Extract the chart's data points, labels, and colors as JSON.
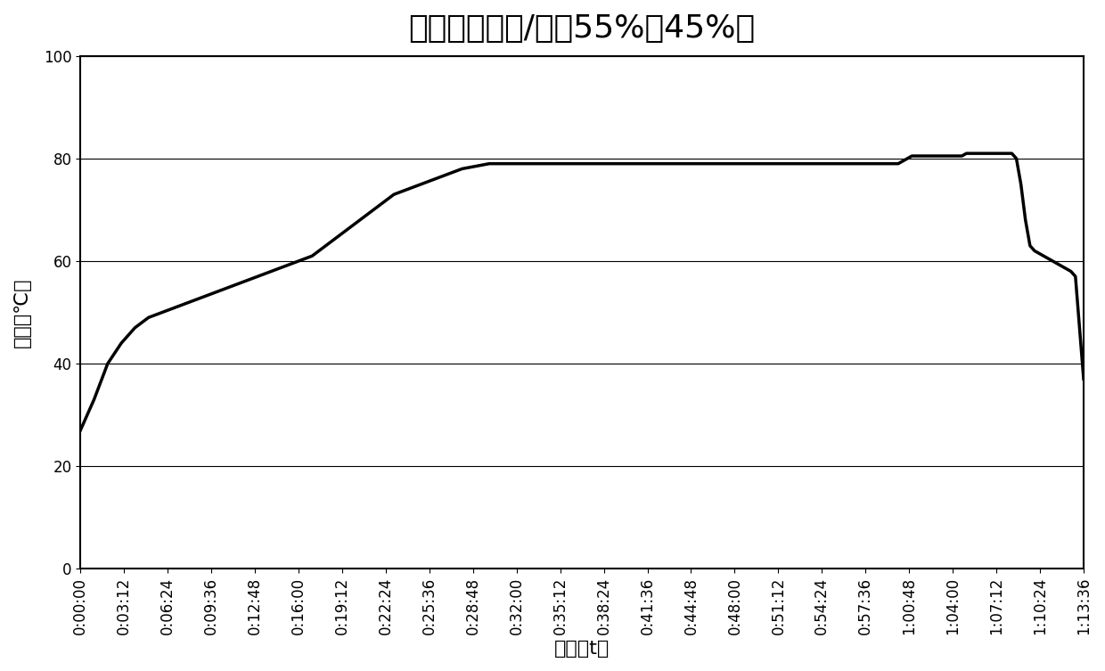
{
  "title": "无水焦磷酸钓/水（55%：45%）",
  "xlabel": "时间（t）",
  "ylabel": "温度（℃）",
  "ylabel_chars": [
    "温",
    "度",
    "（",
    "℃",
    "）"
  ],
  "ylim": [
    0,
    100
  ],
  "yticks": [
    0,
    20,
    40,
    60,
    80,
    100
  ],
  "xtick_labels": [
    "0:00:00",
    "0:03:12",
    "0:06:24",
    "0:09:36",
    "0:12:48",
    "0:16:00",
    "0:19:12",
    "0:22:24",
    "0:25:36",
    "0:28:48",
    "0:32:00",
    "0:35:12",
    "0:38:24",
    "0:41:36",
    "0:44:48",
    "0:48:00",
    "0:51:12",
    "0:54:24",
    "0:57:36",
    "1:00:48",
    "1:04:00",
    "1:07:12",
    "1:10:24",
    "1:13:36"
  ],
  "time_values_seconds": [
    0,
    192,
    384,
    576,
    768,
    960,
    1152,
    1344,
    1536,
    1728,
    1920,
    2112,
    2304,
    2496,
    2688,
    2880,
    3072,
    3264,
    3456,
    3648,
    3840,
    4032,
    4224,
    4416
  ],
  "curve_times": [
    0,
    60,
    120,
    180,
    240,
    300,
    360,
    420,
    480,
    540,
    600,
    660,
    720,
    780,
    840,
    900,
    960,
    1020,
    1080,
    1140,
    1200,
    1260,
    1320,
    1380,
    1440,
    1500,
    1560,
    1620,
    1680,
    1740,
    1800,
    1860,
    1920,
    1980,
    2040,
    2100,
    2160,
    2220,
    2280,
    2340,
    2400,
    2460,
    2520,
    2580,
    2640,
    2700,
    2760,
    2820,
    2880,
    2940,
    3000,
    3060,
    3120,
    3180,
    3240,
    3300,
    3360,
    3420,
    3480,
    3540,
    3600,
    3620,
    3640,
    3660,
    3680,
    3700,
    3720,
    3740,
    3760,
    3780,
    3800,
    3820,
    3840,
    3860,
    3880,
    3900,
    3920,
    3940,
    3960,
    3980,
    4000,
    4020,
    4040,
    4060,
    4080,
    4100,
    4120,
    4140,
    4160,
    4180,
    4200,
    4220,
    4240,
    4260,
    4280,
    4300,
    4320,
    4340,
    4360,
    4380,
    4416
  ],
  "curve_temps": [
    27,
    33,
    40,
    44,
    47,
    49,
    50,
    51,
    52,
    53,
    54,
    55,
    56,
    57,
    58,
    59,
    60,
    61,
    63,
    65,
    67,
    69,
    71,
    73,
    74,
    75,
    76,
    77,
    78,
    78.5,
    79,
    79,
    79,
    79,
    79,
    79,
    79,
    79,
    79,
    79,
    79,
    79,
    79,
    79,
    79,
    79,
    79,
    79,
    79,
    79,
    79,
    79,
    79,
    79,
    79,
    79,
    79,
    79,
    79,
    79,
    79,
    79.5,
    80,
    80.5,
    80.5,
    80.5,
    80.5,
    80.5,
    80.5,
    80.5,
    80.5,
    80.5,
    80.5,
    80.5,
    80.5,
    81,
    81,
    81,
    81,
    81,
    81,
    81,
    81,
    81,
    81,
    81,
    80,
    75,
    68,
    63,
    62,
    61.5,
    61,
    60.5,
    60,
    59.5,
    59,
    58.5,
    58,
    57,
    37
  ],
  "line_color": "#000000",
  "line_width": 2.5,
  "background_color": "#ffffff",
  "title_fontsize": 26,
  "axis_label_fontsize": 16,
  "tick_fontsize": 12,
  "grid_color": "#000000",
  "grid_alpha": 1.0
}
